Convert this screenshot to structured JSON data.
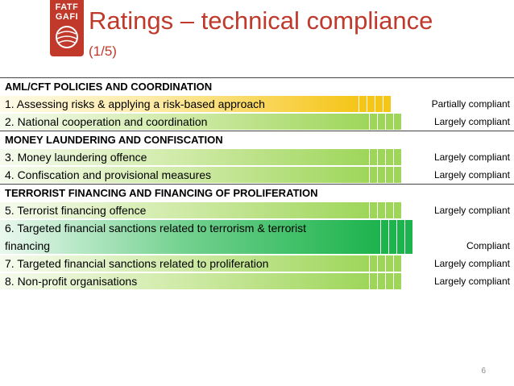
{
  "logo": {
    "line1": "FATF",
    "line2": "GAFI"
  },
  "title": "Ratings – technical compliance",
  "subtitle": "(1/5)",
  "colors": {
    "accent": "#c0392b",
    "partially_compliant": "#f5c518",
    "largely_compliant": "#9ed65a",
    "compliant": "#1db34d"
  },
  "sections": [
    {
      "heading": "AML/CFT POLICIES AND COORDINATION",
      "items": [
        {
          "label": "1. Assessing risks & applying a risk-based approach",
          "rating": "Partially compliant",
          "level": "partial"
        },
        {
          "label": "2. National cooperation and coordination",
          "rating": "Largely compliant",
          "level": "largely"
        }
      ]
    },
    {
      "heading": "MONEY LAUNDERING AND CONFISCATION",
      "items": [
        {
          "label": "3. Money laundering offence",
          "rating": "Largely compliant",
          "level": "largely"
        },
        {
          "label": "4. Confiscation and provisional measures",
          "rating": "Largely compliant",
          "level": "largely"
        }
      ]
    },
    {
      "heading": "TERRORIST FINANCING AND FINANCING OF PROLIFERATION",
      "items": [
        {
          "label": "5. Terrorist financing offence",
          "rating": "Largely compliant",
          "level": "largely"
        },
        {
          "label": "6. Targeted financial sanctions related to terrorism & terrorist",
          "label2": "financing",
          "rating": "Compliant",
          "level": "compliant"
        },
        {
          "label": "7. Targeted financial sanctions related to proliferation",
          "rating": "Largely compliant",
          "level": "largely"
        },
        {
          "label": "8. Non-profit organisations",
          "rating": "Largely compliant",
          "level": "largely"
        }
      ]
    }
  ],
  "page_number": "6"
}
